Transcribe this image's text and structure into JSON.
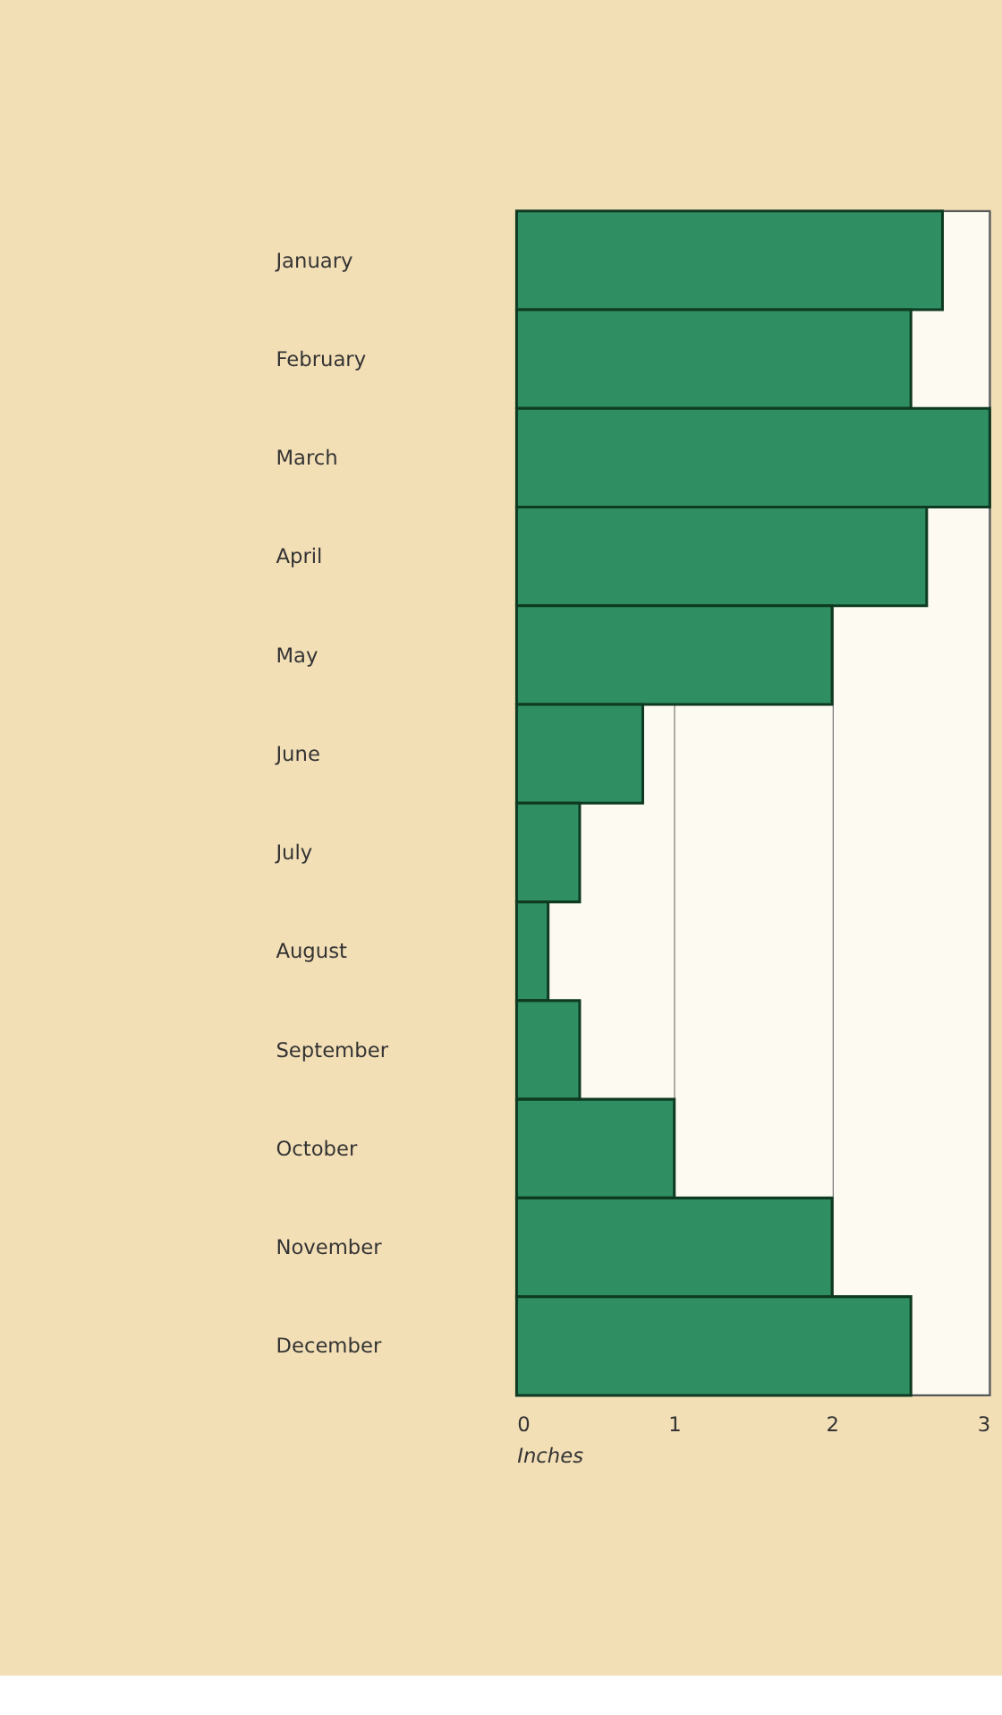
{
  "chart_data": {
    "type": "bar",
    "orientation": "horizontal",
    "xlabel": "Inches",
    "categories": [
      "January",
      "February",
      "March",
      "April",
      "May",
      "June",
      "July",
      "August",
      "September",
      "October",
      "November",
      "December"
    ],
    "values": [
      2.7,
      2.5,
      3.0,
      2.6,
      2.0,
      0.8,
      0.4,
      0.2,
      0.4,
      1.0,
      2.0,
      2.5
    ],
    "color": "#2f8f63",
    "xlim": [
      0,
      3
    ],
    "xticks": [
      0,
      1,
      2,
      3
    ],
    "grid": "x"
  }
}
